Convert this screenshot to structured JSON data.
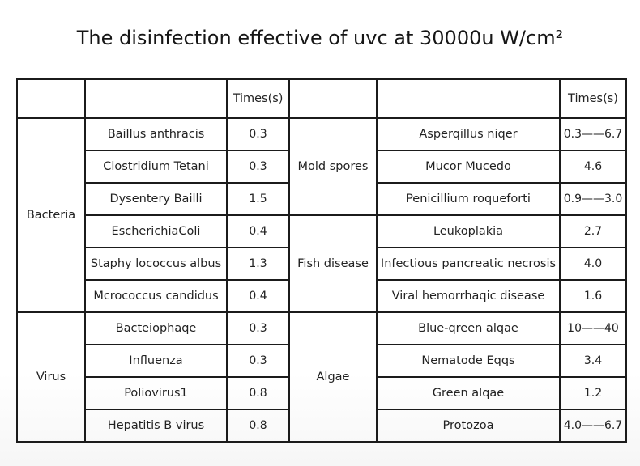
{
  "title": "The disinfection effective of uvc at  30000u W/cm²",
  "table": {
    "header": {
      "left_times_label": "Times(s)",
      "right_times_label": "Times(s)"
    },
    "left_groups": [
      {
        "category": "Bacteria",
        "rows": [
          {
            "organism": "Baillus anthracis",
            "time": "0.3"
          },
          {
            "organism": "Clostridium Tetani",
            "time": "0.3"
          },
          {
            "organism": "Dysentery Bailli",
            "time": "1.5"
          },
          {
            "organism": "EscherichiaColi",
            "time": "0.4"
          },
          {
            "organism": "Staphy lococcus albus",
            "time": "1.3"
          },
          {
            "organism": "Mcrococcus candidus",
            "time": "0.4"
          }
        ]
      },
      {
        "category": "Virus",
        "rows": [
          {
            "organism": "Bacteiophaqe",
            "time": "0.3"
          },
          {
            "organism": "Influenza",
            "time": "0.3"
          },
          {
            "organism": "Poliovirus1",
            "time": "0.8"
          },
          {
            "organism": "Hepatitis B virus",
            "time": "0.8"
          }
        ]
      }
    ],
    "right_groups": [
      {
        "category": "Mold spores",
        "rows": [
          {
            "organism": "Asperqillus niqer",
            "time": "0.3——6.7"
          },
          {
            "organism": "Mucor Mucedo",
            "time": "4.6"
          },
          {
            "organism": "Penicillium roqueforti",
            "time": "0.9——3.0"
          }
        ]
      },
      {
        "category": "Fish disease",
        "rows": [
          {
            "organism": "Leukoplakia",
            "time": "2.7"
          },
          {
            "organism": "Infectious pancreatic necrosis",
            "time": "4.0"
          },
          {
            "organism": "Viral hemorrhaqic disease",
            "time": "1.6"
          }
        ]
      },
      {
        "category": "Algae",
        "rows": [
          {
            "organism": "Blue-qreen alqae",
            "time": "10——40"
          },
          {
            "organism": "Nematode Eqqs",
            "time": "3.4"
          },
          {
            "organism": "Green alqae",
            "time": "1.2"
          },
          {
            "organism": "Protozoa",
            "time": "4.0——6.7"
          }
        ]
      }
    ]
  }
}
